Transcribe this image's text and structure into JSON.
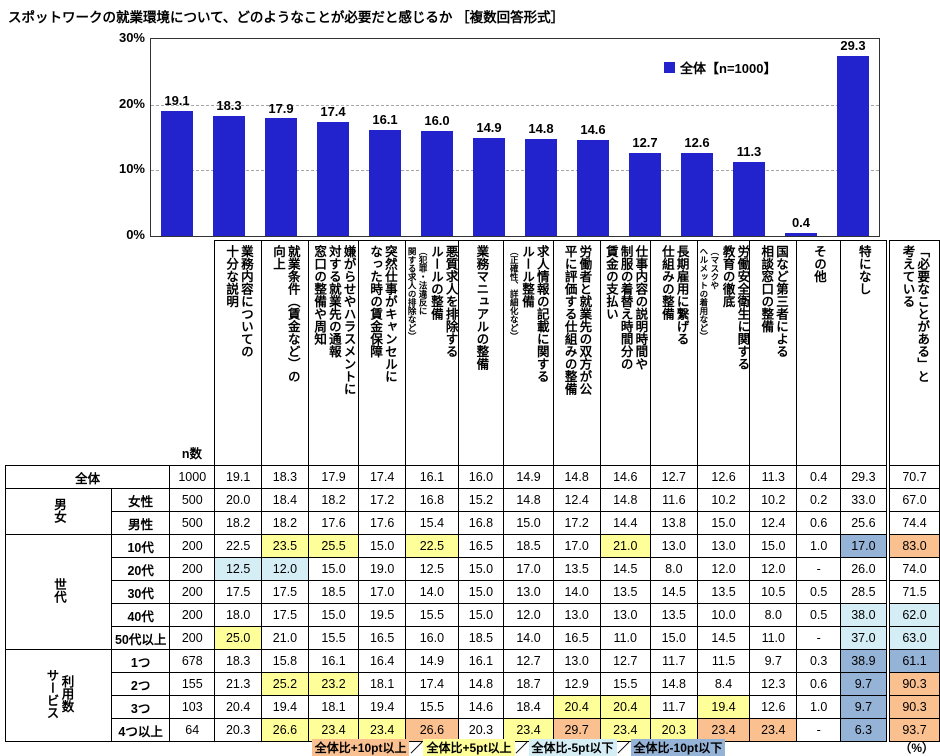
{
  "title": "スポットワークの就業環境について、どのようなことが必要だと感じるか ［複数回答形式］",
  "legend": {
    "label": "全体【n=1000】"
  },
  "colors": {
    "bar": "#2323ce",
    "plus10": "#fac090",
    "plus5": "#ffff99",
    "minus5": "#d5eef5",
    "minus10": "#95b3d7"
  },
  "chart_data": {
    "type": "bar",
    "title": "スポットワークの就業環境について、どのようなことが必要だと感じるか ［複数回答形式］",
    "series_name": "全体【n=1000】",
    "categories": [
      "業務内容についての十分な説明",
      "就業条件（賃金など）の向上",
      "嫌がらせやハラスメントに対する就業先の通報窓口の整備や周知",
      "突然仕事がキャンセルになった時の賃金保障",
      "悪質求人を排除するルールの整備（犯罪・法違反に関する求人の排除など）",
      "業務マニュアルの整備",
      "求人情報の記載に関するルール整備（正確性、詳細化など）",
      "労働者と就業先の双方が公平に評価する仕組みの整備",
      "仕事内容の説明時間や制服の着替え時間分の賃金の支払い",
      "長期雇用に繋げる仕組みの整備",
      "労働安全衛生に関する教育の徹底（マスクやヘルメットの着用など）",
      "国など第三者による相談窓口の整備",
      "その他",
      "特になし"
    ],
    "values": [
      19.1,
      18.3,
      17.9,
      17.4,
      16.1,
      16.0,
      14.9,
      14.8,
      14.6,
      12.7,
      12.6,
      11.3,
      0.4,
      29.3
    ],
    "ylim": [
      0,
      30
    ],
    "yticks": [
      "30%",
      "20%",
      "10%",
      "0%"
    ],
    "grid": "dashed-horizontal",
    "legend_position": "top-right"
  },
  "table": {
    "n_header": "n数",
    "col_headers": [
      {
        "main": "業務内容についての\n十分な説明"
      },
      {
        "main": "就業条件（賃金など）の\n向上"
      },
      {
        "main": "嫌がらせやハラスメントに\n対する就業先の通報\n窓口の整備や周知"
      },
      {
        "main": "突然仕事がキャンセルに\nなった時の賃金保障"
      },
      {
        "main": "悪質求人を排除する\nルールの整備",
        "sub": "（犯罪・法違反に\n関する求人の排除など）"
      },
      {
        "main": "業務マニュアルの整備"
      },
      {
        "main": "求人情報の記載に関する\nルール整備",
        "sub": "（正確性、詳細化など）"
      },
      {
        "main": "労働者と就業先の双方が公\n平に評価する仕組みの整備"
      },
      {
        "main": "仕事内容の説明時間や\n制服の着替え時間分の\n賃金の支払い"
      },
      {
        "main": "長期雇用に繋げる\n仕組みの整備"
      },
      {
        "main": "労働安全衛生に関する\n教育の徹底",
        "sub": "（マスクや\nヘルメットの着用など）"
      },
      {
        "main": "国など第三者による\n相談窓口の整備"
      },
      {
        "main": "その他"
      },
      {
        "main": "特になし"
      }
    ],
    "extra_header": "「必要なことがある」と\n考えている",
    "row_groups": [
      {
        "group": "",
        "rows": [
          {
            "label": "全体",
            "n": "1000",
            "v": [
              "19.1",
              "18.3",
              "17.9",
              "17.4",
              "16.1",
              "16.0",
              "14.9",
              "14.8",
              "14.6",
              "12.7",
              "12.6",
              "11.3",
              "0.4",
              "29.3",
              "70.7"
            ],
            "hl": "..............."
          }
        ]
      },
      {
        "group": "男女",
        "rows": [
          {
            "label": "女性",
            "n": "500",
            "v": [
              "20.0",
              "18.4",
              "18.2",
              "17.2",
              "16.8",
              "15.2",
              "14.8",
              "12.4",
              "14.8",
              "11.6",
              "10.2",
              "10.2",
              "0.2",
              "33.0",
              "67.0"
            ],
            "hl": "..............."
          },
          {
            "label": "男性",
            "n": "500",
            "v": [
              "18.2",
              "18.2",
              "17.6",
              "17.6",
              "15.4",
              "16.8",
              "15.0",
              "17.2",
              "14.4",
              "13.8",
              "15.0",
              "12.4",
              "0.6",
              "25.6",
              "74.4"
            ],
            "hl": "..............."
          }
        ]
      },
      {
        "group": "世代",
        "rows": [
          {
            "label": "10代",
            "n": "200",
            "v": [
              "22.5",
              "23.5",
              "25.5",
              "15.0",
              "22.5",
              "16.5",
              "18.5",
              "17.0",
              "21.0",
              "13.0",
              "13.0",
              "15.0",
              "1.0",
              "17.0",
              "83.0"
            ],
            "hl": ".yy.y...y....bo"
          },
          {
            "label": "20代",
            "n": "200",
            "v": [
              "12.5",
              "12.0",
              "15.0",
              "19.0",
              "12.5",
              "15.0",
              "17.0",
              "13.5",
              "14.5",
              "8.0",
              "12.0",
              "12.0",
              "-",
              "26.0",
              "74.0"
            ],
            "hl": "cc............."
          },
          {
            "label": "30代",
            "n": "200",
            "v": [
              "17.5",
              "17.5",
              "18.5",
              "17.0",
              "14.0",
              "15.0",
              "13.0",
              "14.0",
              "13.5",
              "14.5",
              "13.5",
              "10.5",
              "0.5",
              "28.5",
              "71.5"
            ],
            "hl": "..............."
          },
          {
            "label": "40代",
            "n": "200",
            "v": [
              "18.0",
              "17.5",
              "15.0",
              "19.5",
              "15.5",
              "15.0",
              "12.0",
              "13.0",
              "13.0",
              "13.5",
              "10.0",
              "8.0",
              "0.5",
              "38.0",
              "62.0"
            ],
            "hl": ".............cc"
          },
          {
            "label": "50代以上",
            "n": "200",
            "v": [
              "25.0",
              "21.0",
              "15.5",
              "16.5",
              "16.0",
              "18.5",
              "14.0",
              "16.5",
              "11.0",
              "15.0",
              "14.5",
              "11.0",
              "-",
              "37.0",
              "63.0"
            ],
            "hl": "y............cc"
          }
        ]
      },
      {
        "group": "サービス\n利用数",
        "rows": [
          {
            "label": "1つ",
            "n": "678",
            "v": [
              "18.3",
              "15.8",
              "16.1",
              "16.4",
              "14.9",
              "16.1",
              "12.7",
              "13.0",
              "12.7",
              "11.7",
              "11.5",
              "9.7",
              "0.3",
              "38.9",
              "61.1"
            ],
            "hl": ".............bb"
          },
          {
            "label": "2つ",
            "n": "155",
            "v": [
              "21.3",
              "25.2",
              "23.2",
              "18.1",
              "17.4",
              "14.8",
              "18.7",
              "12.9",
              "15.5",
              "14.8",
              "8.4",
              "12.3",
              "0.6",
              "9.7",
              "90.3"
            ],
            "hl": ".yy..........bo"
          },
          {
            "label": "3つ",
            "n": "103",
            "v": [
              "20.4",
              "19.4",
              "18.1",
              "19.4",
              "15.5",
              "14.6",
              "18.4",
              "20.4",
              "20.4",
              "11.7",
              "19.4",
              "12.6",
              "1.0",
              "9.7",
              "90.3"
            ],
            "hl": ".......yy.y..bo"
          },
          {
            "label": "4つ以上",
            "n": "64",
            "v": [
              "20.3",
              "26.6",
              "23.4",
              "23.4",
              "26.6",
              "20.3",
              "23.4",
              "29.7",
              "23.4",
              "20.3",
              "23.4",
              "23.4",
              "-",
              "6.3",
              "93.7"
            ],
            "hl": ".yyyo.yoyyoo.bo"
          }
        ]
      }
    ]
  },
  "footer": {
    "legend": [
      {
        "label": "全体比+10pt以上",
        "code": "o"
      },
      {
        "label": "全体比+5pt以上",
        "code": "y"
      },
      {
        "label": "全体比-5pt以下",
        "code": "c"
      },
      {
        "label": "全体比-10pt以下",
        "code": "b"
      }
    ],
    "sep": "／",
    "unit": "（%）"
  }
}
